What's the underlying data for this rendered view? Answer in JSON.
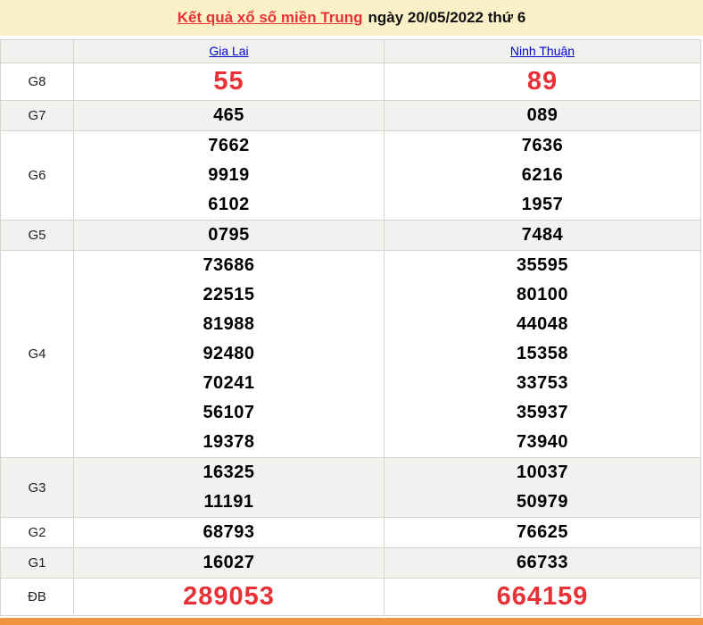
{
  "banner": {
    "title_link": "Kết quả xổ số miền Trung",
    "title_rest": "ngày 20/05/2022 thứ 6"
  },
  "table": {
    "columns": [
      "Gia Lai",
      "Ninh Thuận"
    ],
    "rows": [
      {
        "label": "G8",
        "highlight": true,
        "shaded": false,
        "cells": [
          [
            "55"
          ],
          [
            "89"
          ]
        ]
      },
      {
        "label": "G7",
        "highlight": false,
        "shaded": true,
        "cells": [
          [
            "465"
          ],
          [
            "089"
          ]
        ]
      },
      {
        "label": "G6",
        "highlight": false,
        "shaded": false,
        "cells": [
          [
            "7662",
            "9919",
            "6102"
          ],
          [
            "7636",
            "6216",
            "1957"
          ]
        ]
      },
      {
        "label": "G5",
        "highlight": false,
        "shaded": true,
        "cells": [
          [
            "0795"
          ],
          [
            "7484"
          ]
        ]
      },
      {
        "label": "G4",
        "highlight": false,
        "shaded": false,
        "cells": [
          [
            "73686",
            "22515",
            "81988",
            "92480",
            "70241",
            "56107",
            "19378"
          ],
          [
            "35595",
            "80100",
            "44048",
            "15358",
            "33753",
            "35937",
            "73940"
          ]
        ]
      },
      {
        "label": "G3",
        "highlight": false,
        "shaded": true,
        "cells": [
          [
            "16325",
            "11191"
          ],
          [
            "10037",
            "50979"
          ]
        ]
      },
      {
        "label": "G2",
        "highlight": false,
        "shaded": false,
        "cells": [
          [
            "68793"
          ],
          [
            "76625"
          ]
        ]
      },
      {
        "label": "G1",
        "highlight": false,
        "shaded": true,
        "cells": [
          [
            "16027"
          ],
          [
            "66733"
          ]
        ]
      },
      {
        "label": "ĐB",
        "highlight": true,
        "shaded": false,
        "cells": [
          [
            "289053"
          ],
          [
            "664159"
          ]
        ]
      }
    ]
  },
  "colors": {
    "banner_bg": "#FAF1C8",
    "highlight_red": "#E73137",
    "link_blue": "#0000CC",
    "nav_orange": "#EF9440",
    "row_shaded": "#F1F1F0",
    "border": "#D8D4CC"
  },
  "icons": {}
}
